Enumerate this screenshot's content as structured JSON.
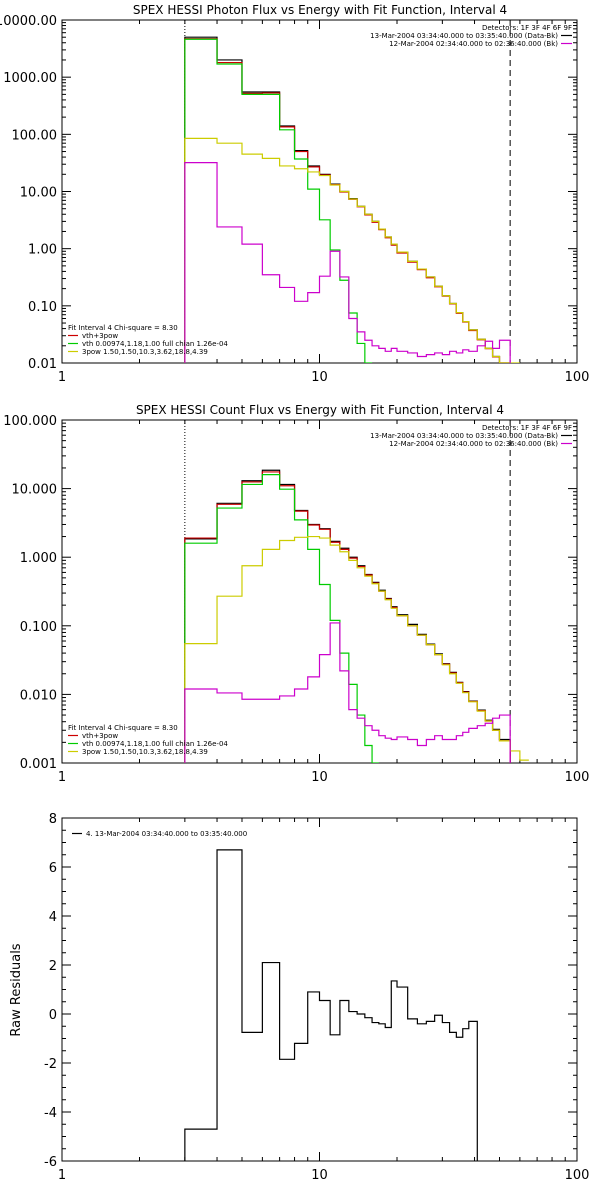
{
  "chart_data": [
    {
      "type": "line",
      "title": "SPEX HESSI Photon Flux vs Energy with Fit Function, Interval 4",
      "xscale": "log",
      "yscale": "log",
      "xlim": [
        1,
        100
      ],
      "ylim": [
        0.01,
        10000
      ],
      "xticks": [
        {
          "v": 1,
          "label": "1"
        },
        {
          "v": 10,
          "label": "10"
        },
        {
          "v": 100,
          "label": "100"
        }
      ],
      "yticks": [
        {
          "v": 10000,
          "label": "10000.00"
        },
        {
          "v": 1000,
          "label": "1000.00"
        },
        {
          "v": 100,
          "label": "100.00"
        },
        {
          "v": 10,
          "label": "10.00"
        },
        {
          "v": 1,
          "label": "1.00"
        },
        {
          "v": 0.1,
          "label": "0.10"
        },
        {
          "v": 0.01,
          "label": "0.01"
        }
      ],
      "vlines": [
        {
          "x": 3,
          "style": "dotted"
        },
        {
          "x": 55,
          "style": "dashed"
        }
      ],
      "legend_top": {
        "placement": "top-right",
        "title": "Detectors: 1F 3F 4F 6F 9F",
        "entries": [
          {
            "label": "13-Mar-2004 03:34:40.000 to 03:35:40.000 (Data-Bk)",
            "color": "#000000"
          },
          {
            "label": "12-Mar-2004 02:34:40.000 to 02:36:40.000 (Bk)",
            "color": "#cc00cc"
          }
        ]
      },
      "legend_bottom": {
        "placement": "bottom-left",
        "title": "Fit Interval 4   Chi-square = 8.30",
        "entries": [
          {
            "label": "vth+3pow",
            "color": "#cc0000"
          },
          {
            "label": "vth 0.00974,1.18,1.00  full chian 1.26e-04",
            "color": "#00cc00"
          },
          {
            "label": "3pow 1.50,1.50,10.3,3.62,18.8,4.39",
            "color": "#cccc00"
          }
        ]
      },
      "edges": [
        3,
        4,
        5,
        6,
        7,
        8,
        9,
        10,
        11,
        12,
        13,
        14,
        15,
        16,
        17,
        18,
        19,
        20,
        22,
        24,
        26,
        28,
        30,
        32,
        34,
        36,
        38,
        41,
        44,
        47,
        50,
        55,
        60
      ],
      "series": [
        {
          "name": "13-Mar-2004 03:34:40.000 to 03:35:40.000 (Data-Bk)",
          "color": "#000000",
          "values": [
            5000,
            2000,
            550,
            550,
            140,
            52,
            28,
            20,
            13.5,
            10,
            7.5,
            5.5,
            4.0,
            3.0,
            2.2,
            1.6,
            1.2,
            0.87,
            0.6,
            0.44,
            0.32,
            0.22,
            0.15,
            0.11,
            0.076,
            0.053,
            0.038,
            0.026,
            0.018,
            0.013,
            0.009,
            null
          ]
        },
        {
          "name": "vth+3pow",
          "color": "#cc0000",
          "values": [
            4700,
            1800,
            520,
            530,
            135,
            50,
            27,
            19.5,
            13.2,
            9.8,
            7.3,
            5.4,
            3.9,
            2.9,
            2.15,
            1.55,
            1.15,
            0.84,
            0.58,
            0.43,
            0.31,
            0.215,
            0.148,
            0.108,
            0.074,
            0.052,
            0.037,
            0.0255,
            0.0178,
            0.0128,
            0.0089,
            null
          ]
        },
        {
          "name": "vth",
          "color": "#00cc00",
          "values": [
            4600,
            1700,
            500,
            500,
            120,
            37,
            11,
            3.2,
            0.95,
            0.28,
            0.075,
            0.022,
            0.005,
            null,
            null,
            null,
            null,
            null,
            null,
            null,
            null,
            null,
            null,
            null,
            null,
            null,
            null,
            null,
            null,
            null,
            null,
            null
          ]
        },
        {
          "name": "3pow",
          "color": "#cccc00",
          "values": [
            85,
            70,
            45,
            38,
            28,
            25,
            22,
            19,
            13,
            10,
            7.4,
            5.5,
            4.0,
            3.0,
            2.2,
            1.6,
            1.2,
            0.87,
            0.6,
            0.44,
            0.32,
            0.22,
            0.15,
            0.11,
            0.076,
            0.053,
            0.038,
            0.026,
            0.018,
            0.013,
            0.009,
            0.0065
          ]
        },
        {
          "name": "12-Mar-2004 02:34:40.000 to 02:36:40.000 (Bk)",
          "color": "#cc00cc",
          "values": [
            32,
            2.4,
            1.2,
            0.35,
            0.21,
            0.12,
            0.17,
            0.33,
            0.9,
            0.32,
            0.06,
            0.035,
            0.025,
            0.02,
            0.018,
            0.016,
            0.018,
            0.016,
            0.015,
            0.013,
            0.014,
            0.015,
            0.014,
            0.016,
            0.015,
            0.017,
            0.016,
            0.02,
            0.024,
            0.018,
            0.025,
            null
          ]
        }
      ]
    },
    {
      "type": "line",
      "title": "SPEX HESSI Count Flux vs Energy with Fit Function, Interval 4",
      "xscale": "log",
      "yscale": "log",
      "xlim": [
        1,
        100
      ],
      "ylim": [
        0.001,
        100
      ],
      "xticks": [
        {
          "v": 1,
          "label": "1"
        },
        {
          "v": 10,
          "label": "10"
        },
        {
          "v": 100,
          "label": "100"
        }
      ],
      "yticks": [
        {
          "v": 100,
          "label": "100.000"
        },
        {
          "v": 10,
          "label": "10.000"
        },
        {
          "v": 1,
          "label": "1.000"
        },
        {
          "v": 0.1,
          "label": "0.100"
        },
        {
          "v": 0.01,
          "label": "0.010"
        },
        {
          "v": 0.001,
          "label": "0.001"
        }
      ],
      "vlines": [
        {
          "x": 3,
          "style": "dotted"
        },
        {
          "x": 55,
          "style": "dashed"
        }
      ],
      "legend_top": {
        "placement": "top-right",
        "title": "Detectors: 1F 3F 4F 6F 9F",
        "entries": [
          {
            "label": "13-Mar-2004 03:34:40.000 to 03:35:40.000 (Data-Bk)",
            "color": "#000000"
          },
          {
            "label": "12-Mar-2004 02:34:40.000 to 02:36:40.000 (Bk)",
            "color": "#cc00cc"
          }
        ]
      },
      "legend_bottom": {
        "placement": "bottom-left",
        "title": "Fit Interval 4   Chi-square = 8.30",
        "entries": [
          {
            "label": "vth+3pow",
            "color": "#cc0000"
          },
          {
            "label": "vth 0.00974,1.18,1.00  full chian 1.26e-04",
            "color": "#00cc00"
          },
          {
            "label": "3pow 1.50,1.50,10.3,3.62,18.8,4.39",
            "color": "#cccc00"
          }
        ]
      },
      "edges": [
        3,
        4,
        5,
        6,
        7,
        8,
        9,
        10,
        11,
        12,
        13,
        14,
        15,
        16,
        17,
        18,
        19,
        20,
        22,
        24,
        26,
        28,
        30,
        32,
        34,
        36,
        38,
        41,
        44,
        47,
        50,
        55,
        60,
        65
      ],
      "series": [
        {
          "name": "13-Mar-2004 03:34:40.000 to 03:35:40.000 (Data-Bk)",
          "color": "#000000",
          "values": [
            1.85,
            6.1,
            13.0,
            18.5,
            11.5,
            4.8,
            3.0,
            2.6,
            1.7,
            1.35,
            1.0,
            0.75,
            0.56,
            0.43,
            0.33,
            0.25,
            0.19,
            0.145,
            0.105,
            0.075,
            0.054,
            0.039,
            0.028,
            0.021,
            0.015,
            0.011,
            0.008,
            0.0059,
            0.0042,
            0.0031,
            0.0022,
            null,
            null
          ]
        },
        {
          "name": "vth+3pow",
          "color": "#cc0000",
          "values": [
            1.9,
            5.9,
            12.5,
            17.5,
            11.0,
            4.7,
            2.95,
            2.55,
            1.65,
            1.3,
            0.97,
            0.73,
            0.55,
            0.42,
            0.32,
            0.245,
            0.185,
            0.14,
            0.1,
            0.073,
            0.053,
            0.038,
            0.0275,
            0.0205,
            0.0148,
            0.0108,
            0.0079,
            0.0058,
            0.0041,
            0.003,
            0.0021,
            null,
            null
          ]
        },
        {
          "name": "vth",
          "color": "#00cc00",
          "values": [
            1.6,
            5.2,
            11.5,
            16.0,
            9.8,
            3.5,
            1.3,
            0.4,
            0.12,
            0.04,
            0.014,
            0.005,
            0.0018,
            0.0008,
            null,
            null,
            null,
            null,
            null,
            null,
            null,
            null,
            null,
            null,
            null,
            null,
            null,
            null,
            null,
            null,
            null,
            null,
            null
          ]
        },
        {
          "name": "3pow",
          "color": "#cccc00",
          "values": [
            0.055,
            0.27,
            0.75,
            1.3,
            1.75,
            1.95,
            2.0,
            1.9,
            1.5,
            1.2,
            0.9,
            0.7,
            0.53,
            0.41,
            0.32,
            0.24,
            0.18,
            0.14,
            0.1,
            0.073,
            0.053,
            0.038,
            0.027,
            0.02,
            0.0145,
            0.0106,
            0.0078,
            0.0057,
            0.0041,
            0.003,
            0.0021,
            0.0015,
            0.0011
          ]
        },
        {
          "name": "12-Mar-2004 02:34:40.000 to 02:36:40.000 (Bk)",
          "color": "#cc00cc",
          "values": [
            0.012,
            0.0105,
            0.0085,
            0.0085,
            0.0095,
            0.012,
            0.018,
            0.038,
            0.11,
            0.022,
            0.006,
            0.0045,
            0.0035,
            0.003,
            0.0025,
            0.0023,
            0.0022,
            0.0024,
            0.0022,
            0.0018,
            0.0022,
            0.0025,
            0.0022,
            0.0022,
            0.0025,
            0.0028,
            0.0032,
            0.0035,
            0.0038,
            0.0045,
            0.005,
            null,
            null
          ]
        }
      ]
    },
    {
      "type": "line",
      "title": "",
      "xscale": "log",
      "yscale": "linear",
      "xlim": [
        1,
        100
      ],
      "ylim": [
        -6,
        8
      ],
      "ylabel": "Raw Residuals",
      "xticks": [
        {
          "v": 1,
          "label": "1"
        },
        {
          "v": 10,
          "label": "10"
        },
        {
          "v": 100,
          "label": "100"
        }
      ],
      "yticks": [
        {
          "v": 8,
          "label": "8"
        },
        {
          "v": 6,
          "label": "6"
        },
        {
          "v": 4,
          "label": "4"
        },
        {
          "v": 2,
          "label": "2"
        },
        {
          "v": 0,
          "label": "0"
        },
        {
          "v": -2,
          "label": "-2"
        },
        {
          "v": -4,
          "label": "-4"
        },
        {
          "v": -6,
          "label": "-6"
        }
      ],
      "vlines": [],
      "legend_top": {
        "placement": "top-left",
        "title": "",
        "entries": [
          {
            "label": "4. 13-Mar-2004 03:34:40.000 to 03:35:40.000",
            "color": "#000000"
          }
        ]
      },
      "edges": [
        3,
        4,
        5,
        6,
        7,
        8,
        9,
        10,
        11,
        12,
        13,
        14,
        15,
        16,
        17,
        18,
        19,
        20,
        22,
        24,
        26,
        28,
        30,
        32,
        34,
        36,
        38,
        41,
        44,
        47,
        50,
        55
      ],
      "series": [
        {
          "name": "4. 13-Mar-2004 03:34:40.000 to 03:35:40.000",
          "color": "#000000",
          "values": [
            -4.7,
            6.7,
            -0.75,
            2.1,
            -1.85,
            -1.2,
            0.9,
            0.55,
            -0.85,
            0.55,
            0.1,
            0.0,
            -0.15,
            -0.35,
            -0.4,
            -0.55,
            1.35,
            1.1,
            -0.2,
            -0.4,
            -0.3,
            -0.05,
            -0.35,
            -0.75,
            -0.95,
            -0.6,
            -0.3,
            null,
            null,
            null,
            null
          ]
        }
      ],
      "end_drop_to": -6
    }
  ]
}
